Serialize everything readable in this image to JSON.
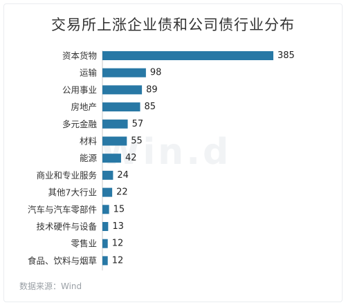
{
  "chart_data": {
    "type": "bar",
    "orientation": "horizontal",
    "title": "交易所上涨企业债和公司债行业分布",
    "categories": [
      "资本货物",
      "运输",
      "公用事业",
      "房地产",
      "多元金融",
      "材料",
      "能源",
      "商业和专业服务",
      "其他7大行业",
      "汽车与汽车零部件",
      "技术硬件与设备",
      "零售业",
      "食品、饮料与烟草"
    ],
    "values": [
      385,
      98,
      89,
      85,
      57,
      55,
      42,
      24,
      22,
      15,
      13,
      12,
      12
    ],
    "xlim": [
      0,
      385
    ],
    "grid": false,
    "legend": "none",
    "bar_color": "#2878a5"
  },
  "source": "数据来源：Wind",
  "watermark": "Win.d"
}
